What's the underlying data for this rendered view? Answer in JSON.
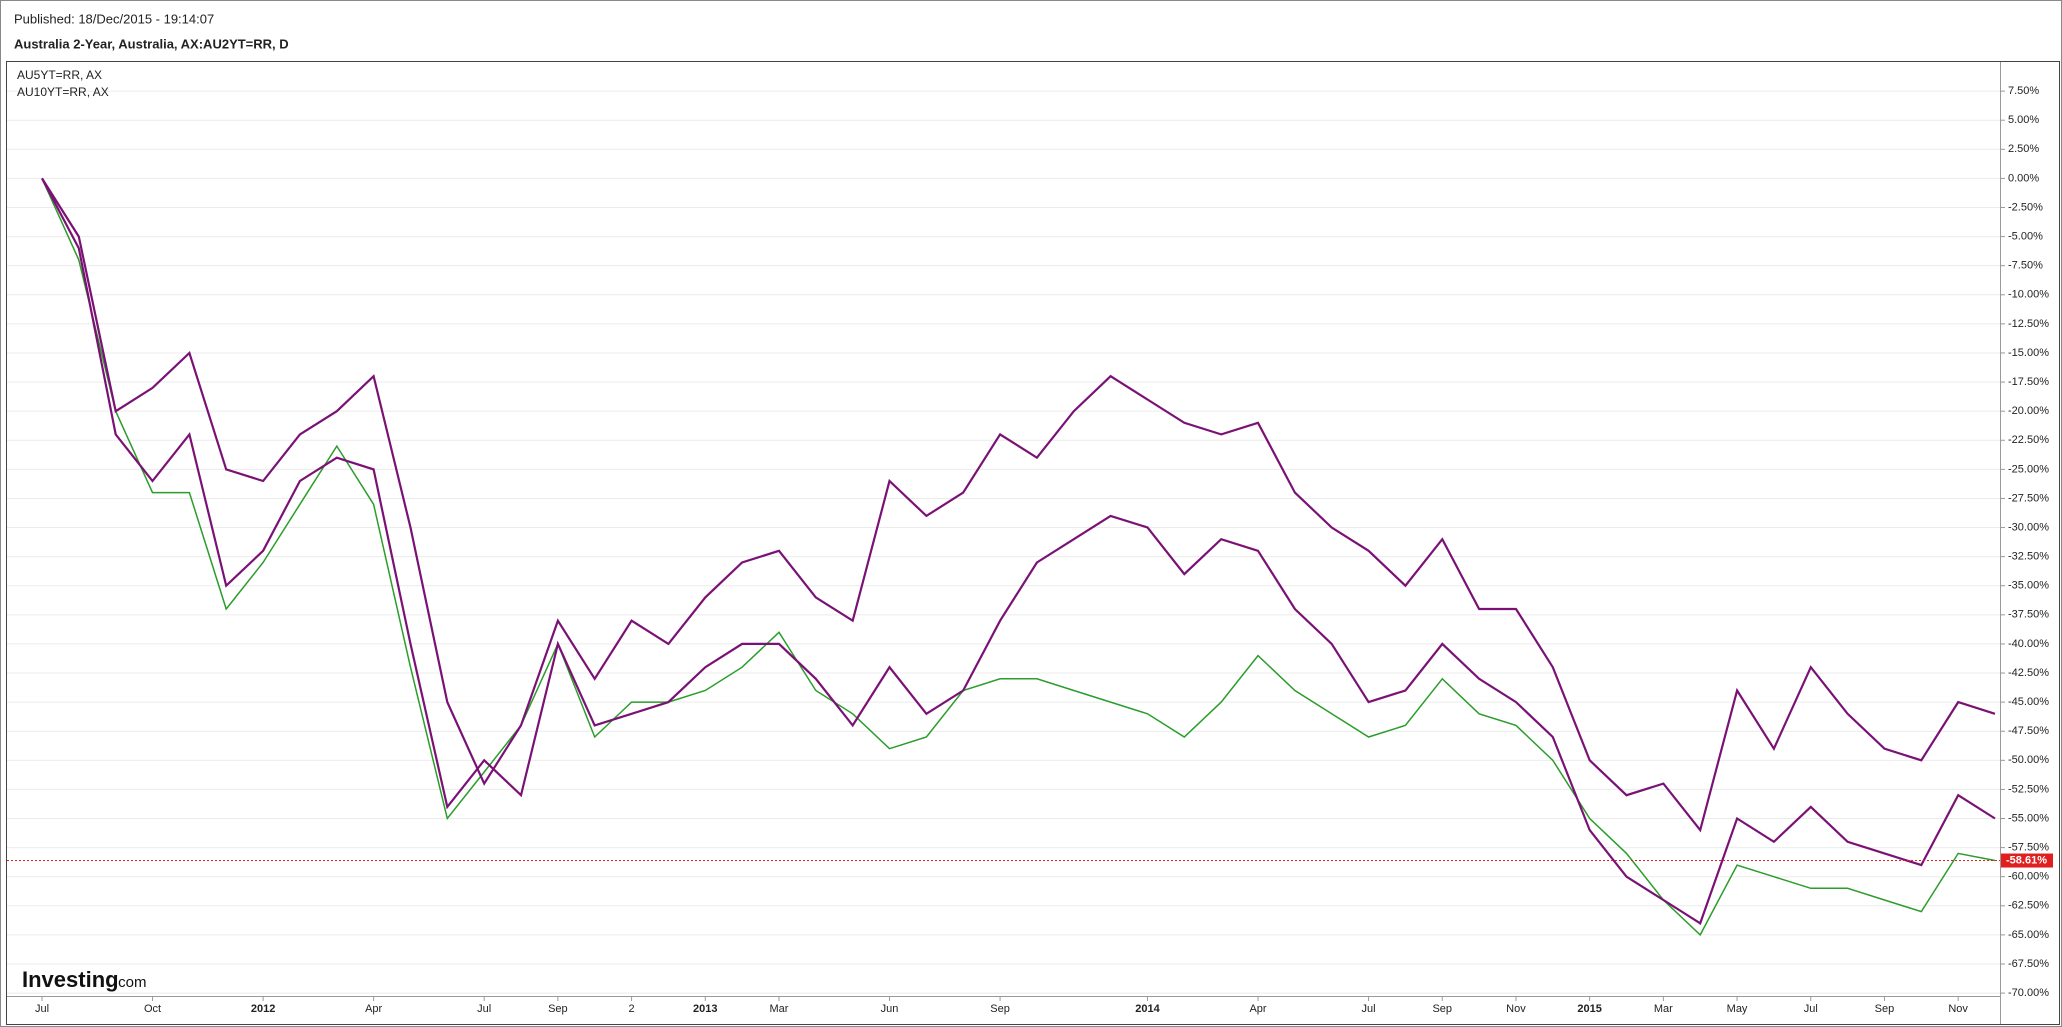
{
  "published": "Published: 18/Dec/2015 - 19:14:07",
  "logo_main": "Investing",
  "logo_suffix": ".com",
  "chart_data": {
    "type": "line",
    "title": "Australia 2-Year, Australia, AX:AU2YT=RR, D",
    "categories": [
      "Jul",
      null,
      null,
      "Oct",
      null,
      null,
      "2012",
      null,
      null,
      "Apr",
      null,
      null,
      "Jul",
      null,
      "Sep",
      null,
      "2",
      null,
      "2013",
      null,
      "Mar",
      null,
      null,
      "Jun",
      null,
      null,
      "Sep",
      null,
      null,
      null,
      "2014",
      null,
      null,
      "Apr",
      null,
      null,
      "Jul",
      null,
      "Sep",
      null,
      "Nov",
      null,
      "2015",
      null,
      "Mar",
      null,
      "May",
      null,
      "Jul",
      null,
      "Sep",
      null,
      "Nov",
      null
    ],
    "series": [
      {
        "color": "#2a9d2a",
        "values": [
          0,
          -7,
          -20,
          -27,
          -27,
          -37,
          -33,
          -28,
          -23,
          -28,
          -42,
          -55,
          -51,
          -47,
          -40,
          -48,
          -45,
          -45,
          -44,
          -42,
          -39,
          -44,
          -46,
          -49,
          -48,
          -44,
          -43,
          -43,
          -44,
          -45,
          -46,
          -48,
          -45,
          -41,
          -44,
          -46,
          -48,
          -47,
          -43,
          -46,
          -47,
          -50,
          -55,
          -58,
          -62,
          -65,
          -59,
          -60,
          -61,
          -61,
          -62,
          -63,
          -58,
          -58.61
        ]
      },
      {
        "name": "AU5YT=RR, AX",
        "color": "#7a1275",
        "values": [
          0,
          -6,
          -22,
          -26,
          -22,
          -35,
          -32,
          -26,
          -24,
          -25,
          -40,
          -54,
          -50,
          -53,
          -40,
          -47,
          -46,
          -45,
          -42,
          -40,
          -40,
          -43,
          -47,
          -42,
          -46,
          -44,
          -38,
          -33,
          -31,
          -29,
          -30,
          -34,
          -31,
          -32,
          -37,
          -40,
          -45,
          -44,
          -40,
          -43,
          -45,
          -48,
          -56,
          -60,
          -62,
          -64,
          -55,
          -57,
          -54,
          -57,
          -58,
          -59,
          -53,
          -55
        ]
      },
      {
        "name": "AU10YT=RR, AX",
        "color": "#7a1275",
        "values": [
          0,
          -5,
          -20,
          -18,
          -15,
          -25,
          -26,
          -22,
          -20,
          -17,
          -30,
          -45,
          -52,
          -47,
          -38,
          -43,
          -38,
          -40,
          -36,
          -33,
          -32,
          -36,
          -38,
          -26,
          -29,
          -27,
          -22,
          -24,
          -20,
          -17,
          -19,
          -21,
          -22,
          -21,
          -27,
          -30,
          -32,
          -35,
          -31,
          -37,
          -37,
          -42,
          -50,
          -53,
          -52,
          -56,
          -44,
          -49,
          -42,
          -46,
          -49,
          -50,
          -45,
          -46
        ]
      }
    ],
    "current": {
      "value": -58.61,
      "label": "-58.61%"
    },
    "ylim": [
      -70.25,
      10
    ],
    "yticks": [
      {
        "value": 7.5,
        "label": "7.50%"
      },
      {
        "value": 5,
        "label": "5.00%"
      },
      {
        "value": 2.5,
        "label": "2.50%"
      },
      {
        "value": 0,
        "label": "0.00%"
      },
      {
        "value": -2.5,
        "label": "-2.50%"
      },
      {
        "value": -5,
        "label": "-5.00%"
      },
      {
        "value": -7.5,
        "label": "-7.50%"
      },
      {
        "value": -10,
        "label": "-10.00%"
      },
      {
        "value": -12.5,
        "label": "-12.50%"
      },
      {
        "value": -15,
        "label": "-15.00%"
      },
      {
        "value": -17.5,
        "label": "-17.50%"
      },
      {
        "value": -20,
        "label": "-20.00%"
      },
      {
        "value": -22.5,
        "label": "-22.50%"
      },
      {
        "value": -25,
        "label": "-25.00%"
      },
      {
        "value": -27.5,
        "label": "-27.50%"
      },
      {
        "value": -30,
        "label": "-30.00%"
      },
      {
        "value": -32.5,
        "label": "-32.50%"
      },
      {
        "value": -35,
        "label": "-35.00%"
      },
      {
        "value": -37.5,
        "label": "-37.50%"
      },
      {
        "value": -40,
        "label": "-40.00%"
      },
      {
        "value": -42.5,
        "label": "-42.50%"
      },
      {
        "value": -45,
        "label": "-45.00%"
      },
      {
        "value": -47.5,
        "label": "-47.50%"
      },
      {
        "value": -50,
        "label": "-50.00%"
      },
      {
        "value": -52.5,
        "label": "-52.50%"
      },
      {
        "value": -55,
        "label": "-55.00%"
      },
      {
        "value": -57.5,
        "label": "-57.50%"
      },
      {
        "value": -60,
        "label": "-60.00%"
      },
      {
        "value": -62.5,
        "label": "-62.50%"
      },
      {
        "value": -65,
        "label": "-65.00%"
      },
      {
        "value": -67.5,
        "label": "-67.50%"
      },
      {
        "value": -70,
        "label": "-70.00%"
      }
    ],
    "grid": true
  }
}
